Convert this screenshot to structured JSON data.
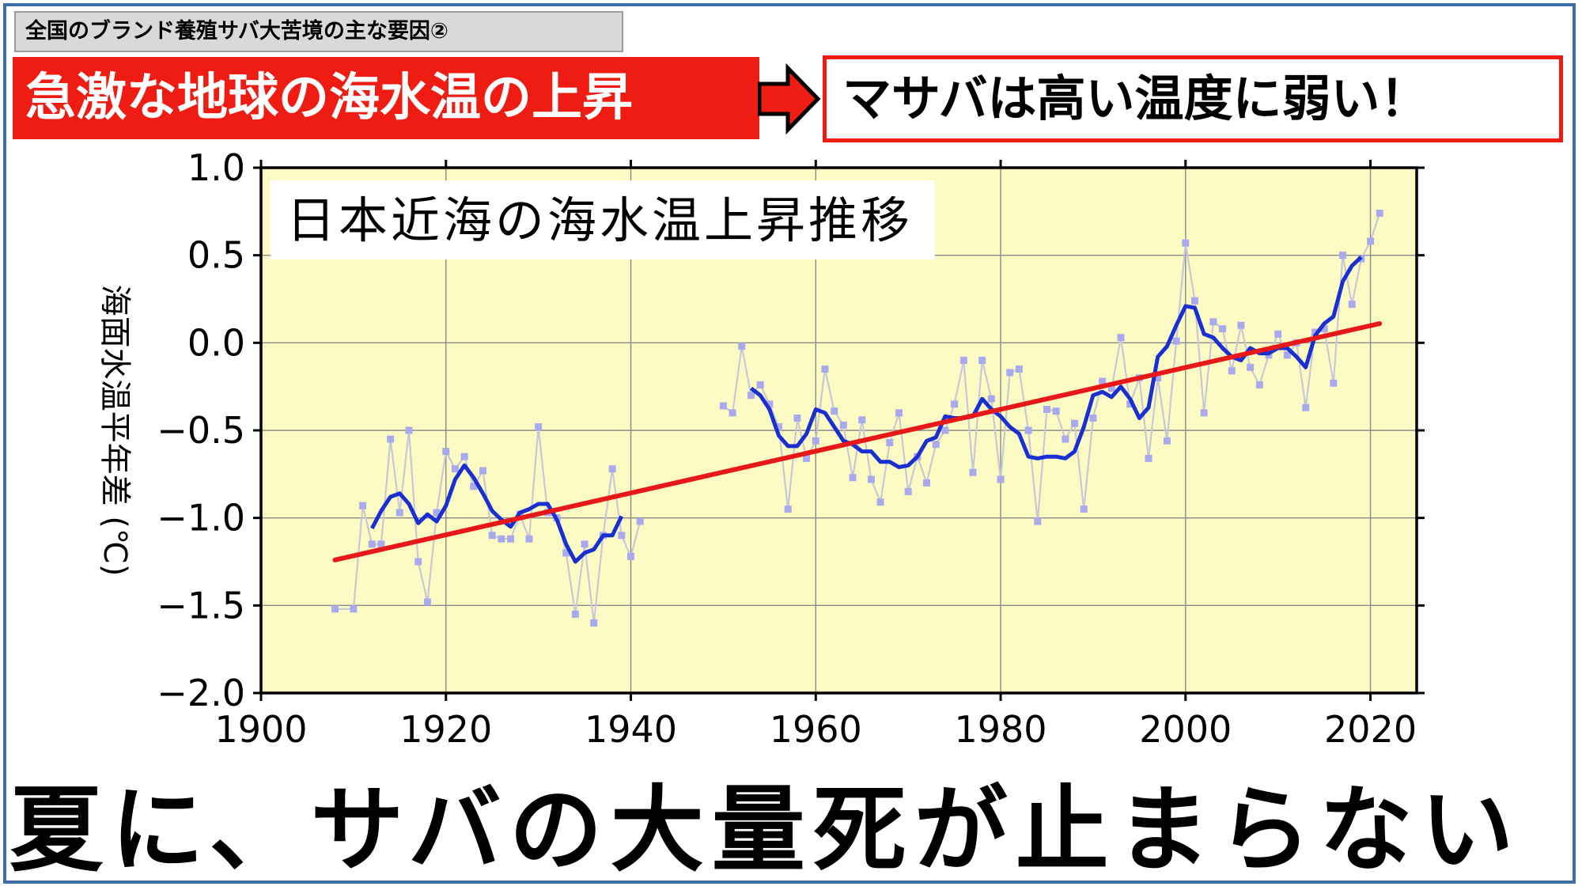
{
  "header": {
    "tag": "全国のブランド養殖サバ大苦境の主な要因②",
    "cause": "急激な地球の海水温の上昇",
    "effect": "マサバは高い温度に弱い！"
  },
  "footer": {
    "title": "夏に、サバの大量死が止まらない"
  },
  "colors": {
    "plot_bg": "#fdfbc4",
    "yearly": "#c8c8d8",
    "yearly_marker": "#a9a9ee",
    "moving_average": "#1a2fd0",
    "trend": "#e81818",
    "accent_red": "#ee1c12",
    "frame": "#3f6fa8"
  },
  "chart_data": {
    "type": "line",
    "title": "日本近海の海水温上昇推移",
    "xlabel": "",
    "ylabel": "海面水温平年差 (℃)",
    "xlim": [
      1900,
      2025
    ],
    "ylim": [
      -2.0,
      1.0
    ],
    "xticks": [
      "1900",
      "1920",
      "1940",
      "1960",
      "1980",
      "2000",
      "2020"
    ],
    "yticks": [
      "1.0",
      "0.5",
      "0.0",
      "−0.5",
      "−1.0",
      "−1.5",
      "−2.0"
    ],
    "grid": true,
    "series": [
      {
        "kind": "yearly",
        "segments": [
          [
            [
              1908,
              -1.52
            ],
            [
              1910,
              -1.52
            ],
            [
              1911,
              -0.93
            ],
            [
              1912,
              -1.15
            ],
            [
              1913,
              -1.15
            ],
            [
              1914,
              -0.55
            ],
            [
              1915,
              -0.97
            ],
            [
              1916,
              -0.5
            ],
            [
              1917,
              -1.25
            ],
            [
              1918,
              -1.48
            ],
            [
              1919,
              -0.97
            ],
            [
              1920,
              -0.62
            ],
            [
              1921,
              -0.72
            ],
            [
              1922,
              -0.65
            ],
            [
              1923,
              -0.82
            ],
            [
              1924,
              -0.73
            ],
            [
              1925,
              -1.1
            ],
            [
              1926,
              -1.12
            ],
            [
              1927,
              -1.12
            ],
            [
              1928,
              -0.98
            ],
            [
              1929,
              -1.12
            ],
            [
              1930,
              -0.48
            ],
            [
              1931,
              -0.97
            ],
            [
              1932,
              -1.0
            ],
            [
              1933,
              -1.2
            ],
            [
              1934,
              -1.55
            ],
            [
              1935,
              -1.15
            ],
            [
              1936,
              -1.6
            ],
            [
              1937,
              -1.1
            ],
            [
              1938,
              -0.72
            ],
            [
              1939,
              -1.1
            ],
            [
              1940,
              -1.22
            ],
            [
              1941,
              -1.02
            ]
          ],
          [
            [
              1950,
              -0.36
            ],
            [
              1951,
              -0.4
            ],
            [
              1952,
              -0.02
            ],
            [
              1953,
              -0.3
            ],
            [
              1954,
              -0.24
            ],
            [
              1955,
              -0.35
            ],
            [
              1956,
              -0.48
            ],
            [
              1957,
              -0.95
            ],
            [
              1958,
              -0.43
            ],
            [
              1959,
              -0.66
            ],
            [
              1960,
              -0.56
            ],
            [
              1961,
              -0.15
            ],
            [
              1962,
              -0.39
            ],
            [
              1963,
              -0.47
            ],
            [
              1964,
              -0.77
            ],
            [
              1965,
              -0.44
            ],
            [
              1966,
              -0.78
            ],
            [
              1967,
              -0.91
            ],
            [
              1968,
              -0.57
            ],
            [
              1969,
              -0.4
            ],
            [
              1970,
              -0.85
            ],
            [
              1971,
              -0.65
            ],
            [
              1972,
              -0.8
            ],
            [
              1973,
              -0.58
            ],
            [
              1974,
              -0.5
            ],
            [
              1975,
              -0.35
            ],
            [
              1976,
              -0.1
            ],
            [
              1977,
              -0.74
            ],
            [
              1978,
              -0.1
            ],
            [
              1979,
              -0.32
            ],
            [
              1980,
              -0.78
            ],
            [
              1981,
              -0.17
            ],
            [
              1982,
              -0.15
            ],
            [
              1983,
              -0.5
            ],
            [
              1984,
              -1.02
            ],
            [
              1985,
              -0.38
            ],
            [
              1986,
              -0.39
            ],
            [
              1987,
              -0.55
            ],
            [
              1988,
              -0.46
            ],
            [
              1989,
              -0.95
            ],
            [
              1990,
              -0.43
            ],
            [
              1991,
              -0.22
            ],
            [
              1992,
              -0.26
            ],
            [
              1993,
              0.03
            ],
            [
              1994,
              -0.35
            ],
            [
              1995,
              -0.2
            ],
            [
              1996,
              -0.66
            ],
            [
              1997,
              -0.2
            ],
            [
              1998,
              -0.56
            ],
            [
              1999,
              0.01
            ],
            [
              2000,
              0.57
            ],
            [
              2001,
              0.24
            ],
            [
              2002,
              -0.4
            ],
            [
              2003,
              0.12
            ],
            [
              2004,
              0.08
            ],
            [
              2005,
              -0.16
            ],
            [
              2006,
              0.1
            ],
            [
              2007,
              -0.14
            ],
            [
              2008,
              -0.24
            ],
            [
              2009,
              -0.07
            ],
            [
              2010,
              0.05
            ],
            [
              2011,
              -0.07
            ],
            [
              2012,
              0.0
            ],
            [
              2013,
              -0.37
            ],
            [
              2014,
              0.06
            ],
            [
              2015,
              0.08
            ],
            [
              2016,
              -0.23
            ],
            [
              2017,
              0.5
            ],
            [
              2018,
              0.22
            ],
            [
              2019,
              0.48
            ],
            [
              2020,
              0.58
            ],
            [
              2021,
              0.74
            ]
          ]
        ]
      },
      {
        "kind": "moving_average",
        "segments": [
          [
            [
              1912,
              -1.06
            ],
            [
              1913,
              -0.96
            ],
            [
              1914,
              -0.88
            ],
            [
              1915,
              -0.86
            ],
            [
              1916,
              -0.92
            ],
            [
              1917,
              -1.03
            ],
            [
              1918,
              -0.98
            ],
            [
              1919,
              -1.02
            ],
            [
              1920,
              -0.93
            ],
            [
              1921,
              -0.78
            ],
            [
              1922,
              -0.7
            ],
            [
              1923,
              -0.77
            ],
            [
              1924,
              -0.86
            ],
            [
              1925,
              -0.96
            ],
            [
              1926,
              -1.01
            ],
            [
              1927,
              -1.05
            ],
            [
              1928,
              -0.97
            ],
            [
              1929,
              -0.95
            ],
            [
              1930,
              -0.92
            ],
            [
              1931,
              -0.92
            ],
            [
              1932,
              -1.01
            ],
            [
              1933,
              -1.15
            ],
            [
              1934,
              -1.25
            ],
            [
              1935,
              -1.2
            ],
            [
              1936,
              -1.18
            ],
            [
              1937,
              -1.1
            ],
            [
              1938,
              -1.1
            ],
            [
              1939,
              -0.99
            ]
          ],
          [
            [
              1953,
              -0.26
            ],
            [
              1954,
              -0.3
            ],
            [
              1955,
              -0.38
            ],
            [
              1956,
              -0.53
            ],
            [
              1957,
              -0.59
            ],
            [
              1958,
              -0.59
            ],
            [
              1959,
              -0.52
            ],
            [
              1960,
              -0.38
            ],
            [
              1961,
              -0.4
            ],
            [
              1962,
              -0.48
            ],
            [
              1963,
              -0.56
            ],
            [
              1964,
              -0.58
            ],
            [
              1965,
              -0.62
            ],
            [
              1966,
              -0.62
            ],
            [
              1967,
              -0.68
            ],
            [
              1968,
              -0.68
            ],
            [
              1969,
              -0.71
            ],
            [
              1970,
              -0.7
            ],
            [
              1971,
              -0.65
            ],
            [
              1972,
              -0.56
            ],
            [
              1973,
              -0.54
            ],
            [
              1974,
              -0.42
            ],
            [
              1975,
              -0.43
            ],
            [
              1976,
              -0.43
            ],
            [
              1977,
              -0.42
            ],
            [
              1978,
              -0.32
            ],
            [
              1979,
              -0.38
            ],
            [
              1980,
              -0.42
            ],
            [
              1981,
              -0.48
            ],
            [
              1982,
              -0.52
            ],
            [
              1983,
              -0.65
            ],
            [
              1984,
              -0.66
            ],
            [
              1985,
              -0.65
            ],
            [
              1986,
              -0.65
            ],
            [
              1987,
              -0.66
            ],
            [
              1988,
              -0.62
            ],
            [
              1989,
              -0.48
            ],
            [
              1990,
              -0.3
            ],
            [
              1991,
              -0.28
            ],
            [
              1992,
              -0.31
            ],
            [
              1993,
              -0.25
            ],
            [
              1994,
              -0.32
            ],
            [
              1995,
              -0.43
            ],
            [
              1996,
              -0.37
            ],
            [
              1997,
              -0.08
            ],
            [
              1998,
              -0.02
            ],
            [
              1999,
              0.1
            ],
            [
              2000,
              0.21
            ],
            [
              2001,
              0.2
            ],
            [
              2002,
              0.05
            ],
            [
              2003,
              0.03
            ],
            [
              2004,
              -0.03
            ],
            [
              2005,
              -0.08
            ],
            [
              2006,
              -0.1
            ],
            [
              2007,
              -0.03
            ],
            [
              2008,
              -0.06
            ],
            [
              2009,
              -0.06
            ],
            [
              2010,
              -0.03
            ],
            [
              2011,
              -0.03
            ],
            [
              2012,
              -0.08
            ],
            [
              2013,
              -0.14
            ],
            [
              2014,
              0.04
            ],
            [
              2015,
              0.11
            ],
            [
              2016,
              0.15
            ],
            [
              2017,
              0.35
            ],
            [
              2018,
              0.44
            ],
            [
              2019,
              0.49
            ]
          ]
        ]
      },
      {
        "kind": "trend",
        "segments": [
          [
            [
              1908,
              -1.24
            ],
            [
              2021,
              0.11
            ]
          ]
        ]
      }
    ]
  }
}
